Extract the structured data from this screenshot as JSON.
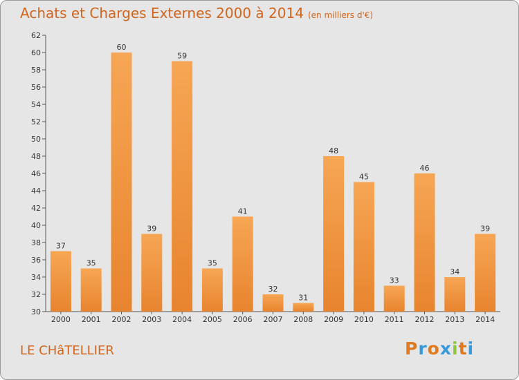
{
  "chart_data": {
    "type": "bar",
    "title": "Achats et Charges Externes 2000 à 2014",
    "subtitle": "(en milliers d'€)",
    "categories": [
      "2000",
      "2001",
      "2002",
      "2003",
      "2004",
      "2005",
      "2006",
      "2007",
      "2008",
      "2009",
      "2010",
      "2011",
      "2012",
      "2013",
      "2014"
    ],
    "values": [
      37,
      35,
      60,
      39,
      59,
      35,
      41,
      32,
      31,
      48,
      45,
      33,
      46,
      34,
      39
    ],
    "ylim": [
      30,
      62
    ],
    "yticks": [
      30,
      32,
      34,
      36,
      38,
      40,
      42,
      44,
      46,
      48,
      50,
      52,
      54,
      56,
      58,
      60,
      62
    ],
    "grid": false,
    "bar_color": "#e8842f",
    "bar_color_light": "#f6a654",
    "label_color": "#333333"
  },
  "commune": "LE CHâTELLIER",
  "logo": {
    "text": "Proxiti",
    "letters": [
      "P",
      "r",
      "o",
      "x",
      "i",
      "t",
      "i"
    ],
    "colors": [
      "#e07a1f",
      "#3a9ad9",
      "#e07a1f",
      "#3a9ad9",
      "#8cc63f",
      "#e07a1f",
      "#3a9ad9"
    ]
  }
}
